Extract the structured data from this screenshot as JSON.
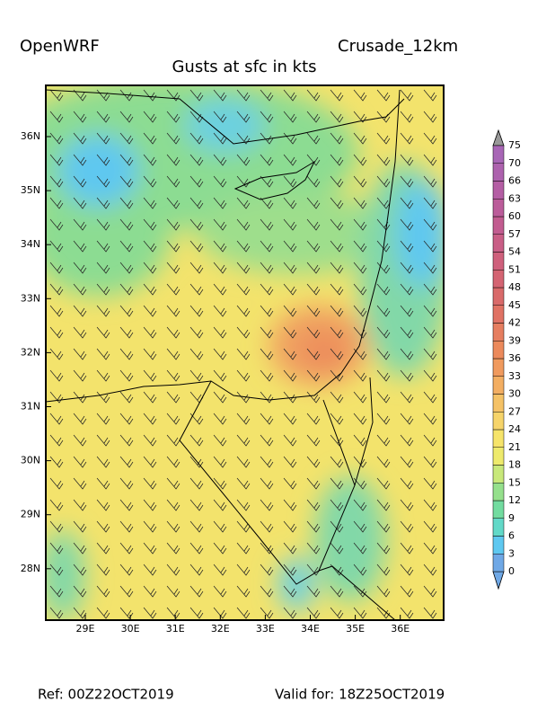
{
  "header": {
    "left": "OpenWRF",
    "right": "Crusade_12km",
    "title": "Gusts at sfc in kts"
  },
  "map": {
    "lat_labels": [
      "36N",
      "35N",
      "34N",
      "33N",
      "32N",
      "31N",
      "30N",
      "29N",
      "28N"
    ],
    "lon_labels": [
      "29E",
      "30E",
      "31E",
      "32E",
      "33E",
      "34E",
      "35E",
      "36E"
    ]
  },
  "colorbar": {
    "levels": [
      "0",
      "3",
      "6",
      "9",
      "12",
      "15",
      "18",
      "21",
      "24",
      "27",
      "30",
      "33",
      "36",
      "39",
      "42",
      "45",
      "48",
      "51",
      "54",
      "57",
      "60",
      "63",
      "66",
      "70",
      "75"
    ],
    "colors": [
      "#6fa8e6",
      "#5ec8f0",
      "#62d9c8",
      "#72dca0",
      "#95e08c",
      "#c8e87a",
      "#eeea6c",
      "#f6e46a",
      "#f6d46a",
      "#f5c266",
      "#f3ae62",
      "#f09a5e",
      "#ec8a5c",
      "#e67e60",
      "#e07264",
      "#d96a6a",
      "#d46472",
      "#cf607c",
      "#c95e86",
      "#c25c90",
      "#bb5c9a",
      "#b45ea4",
      "#ad62ae",
      "#a866b6"
    ]
  },
  "footer": {
    "ref": "Ref: 00Z22OCT2019",
    "valid": "Valid for: 18Z25OCT2019"
  }
}
